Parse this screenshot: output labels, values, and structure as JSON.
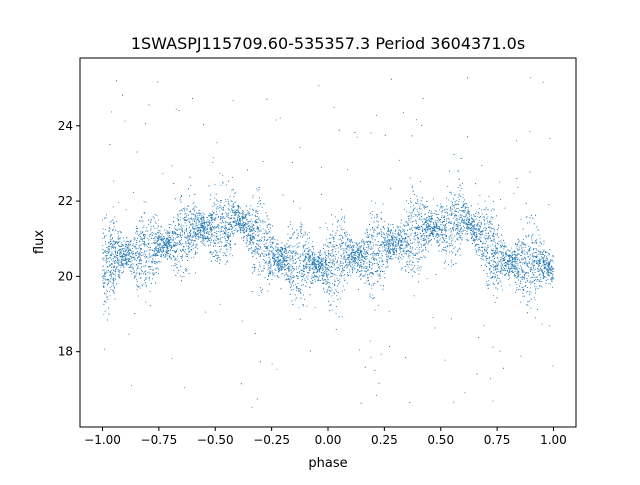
{
  "chart_data": {
    "type": "scatter",
    "title": "1SWASPJ115709.60-535357.3 Period 3604371.0s",
    "xlabel": "phase",
    "ylabel": "flux",
    "xlim": [
      -1.1,
      1.1
    ],
    "ylim": [
      16.0,
      25.8
    ],
    "xticks": [
      -1.0,
      -0.75,
      -0.5,
      -0.25,
      0.0,
      0.25,
      0.5,
      0.75,
      1.0
    ],
    "xtick_labels": [
      "−1.00",
      "−0.75",
      "−0.50",
      "−0.25",
      "0.00",
      "0.25",
      "0.50",
      "0.75",
      "1.00"
    ],
    "yticks": [
      18,
      20,
      22,
      24
    ],
    "ytick_labels": [
      "18",
      "20",
      "22",
      "24"
    ],
    "grid": false,
    "legend": "none",
    "marker_color": "#1f77b4",
    "series": [
      {
        "phase_range": [
          -1.0,
          1.0
        ],
        "flux_center_profile": {
          "x": [
            -1.0,
            -0.95,
            -0.9,
            -0.85,
            -0.8,
            -0.75,
            -0.7,
            -0.65,
            -0.6,
            -0.55,
            -0.5,
            -0.45,
            -0.4,
            -0.35,
            -0.3,
            -0.25,
            -0.2,
            -0.15,
            -0.1,
            -0.05,
            0.0,
            0.05,
            0.1,
            0.15,
            0.2,
            0.25,
            0.3,
            0.35,
            0.4,
            0.45,
            0.5,
            0.55,
            0.6,
            0.65,
            0.7,
            0.75,
            0.8,
            0.85,
            0.9,
            0.95,
            1.0
          ],
          "y": [
            20.2,
            20.5,
            20.6,
            20.5,
            20.6,
            20.8,
            20.9,
            21.0,
            21.2,
            21.3,
            21.3,
            21.4,
            21.6,
            21.2,
            21.0,
            20.6,
            20.4,
            20.3,
            20.4,
            20.3,
            20.2,
            20.5,
            20.6,
            20.5,
            20.6,
            20.8,
            20.9,
            21.0,
            21.2,
            21.3,
            21.3,
            21.4,
            21.6,
            21.2,
            21.0,
            20.6,
            20.4,
            20.3,
            20.4,
            20.3,
            20.2
          ]
        },
        "scatter_spread": 0.7,
        "outlier_range": [
          16.5,
          25.3
        ]
      }
    ]
  }
}
